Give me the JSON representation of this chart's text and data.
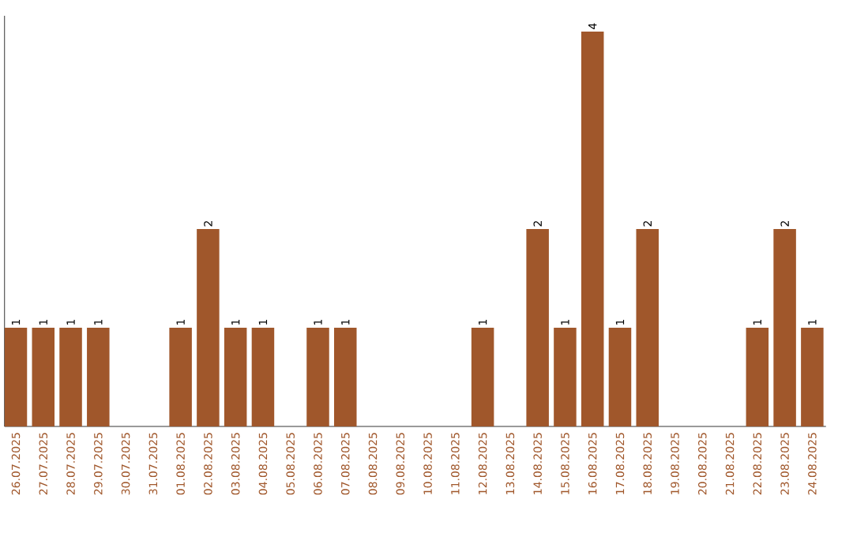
{
  "chart_data": {
    "type": "bar",
    "color": "#a0572b",
    "categories": [
      "26.07.2025",
      "27.07.2025",
      "28.07.2025",
      "29.07.2025",
      "30.07.2025",
      "31.07.2025",
      "01.08.2025",
      "02.08.2025",
      "03.08.2025",
      "04.08.2025",
      "05.08.2025",
      "06.08.2025",
      "07.08.2025",
      "08.08.2025",
      "09.08.2025",
      "10.08.2025",
      "11.08.2025",
      "12.08.2025",
      "13.08.2025",
      "14.08.2025",
      "15.08.2025",
      "16.08.2025",
      "17.08.2025",
      "18.08.2025",
      "19.08.2025",
      "20.08.2025",
      "21.08.2025",
      "22.08.2025",
      "23.08.2025",
      "24.08.2025"
    ],
    "values": [
      1,
      1,
      1,
      1,
      0,
      0,
      1,
      2,
      1,
      1,
      0,
      1,
      1,
      0,
      0,
      0,
      0,
      1,
      0,
      2,
      1,
      4,
      1,
      2,
      0,
      0,
      0,
      1,
      2,
      1
    ],
    "value_labels": [
      "1",
      "1",
      "1",
      "1",
      null,
      null,
      "1",
      "2",
      "1",
      "1",
      null,
      "1",
      "1",
      null,
      null,
      null,
      null,
      "1",
      null,
      "2",
      "1",
      "4",
      "1",
      "2",
      null,
      null,
      null,
      "1",
      "2",
      "1"
    ],
    "tick_labels": "x"
  }
}
